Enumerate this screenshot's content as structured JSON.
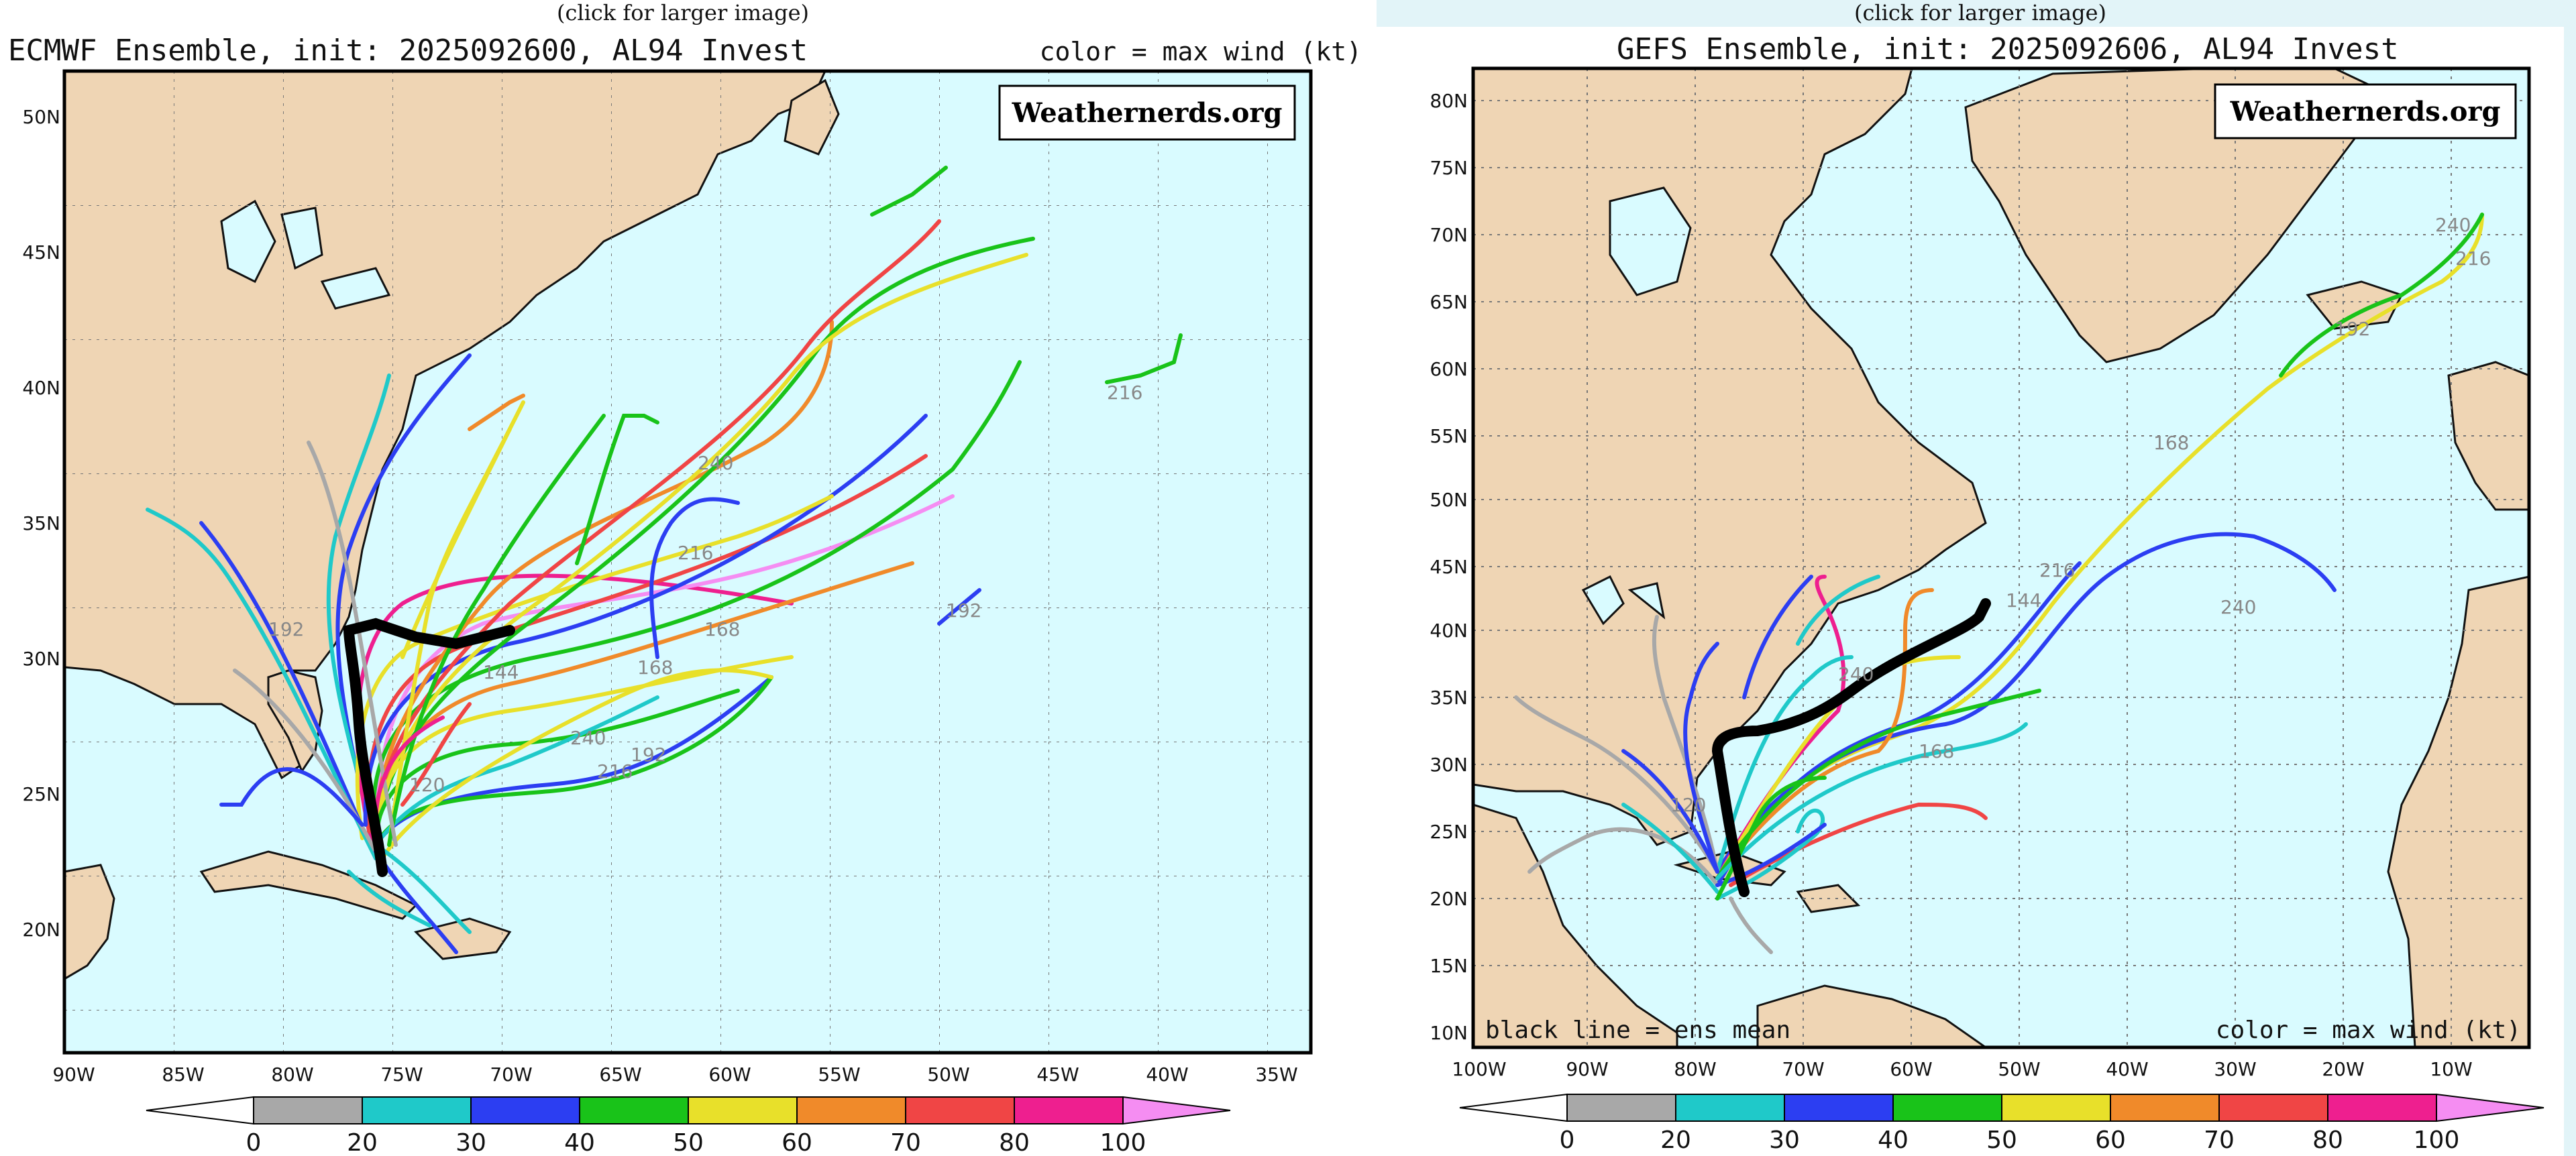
{
  "left_panel": {
    "caption": "(click for larger image)",
    "title": "ECMWF Ensemble, init: 2025092600, AL94 Invest",
    "legend_note": "color = max wind (kt)",
    "watermark": "Weathernerds.org",
    "lat_labels": [
      "50N",
      "45N",
      "40N",
      "35N",
      "30N",
      "25N",
      "20N"
    ],
    "lon_labels": [
      "90W",
      "85W",
      "80W",
      "75W",
      "70W",
      "65W",
      "60W",
      "55W",
      "50W",
      "45W",
      "40W",
      "35W"
    ],
    "hour_labels": [
      "240",
      "216",
      "192",
      "168",
      "144",
      "240",
      "216",
      "192",
      "168",
      "120",
      "192",
      "216"
    ]
  },
  "right_panel": {
    "caption": "(click for larger image)",
    "title": "GEFS Ensemble, init: 2025092606, AL94 Invest",
    "legend_note": "color = max wind (kt)",
    "mean_note": "black line = ens mean",
    "watermark": "Weathernerds.org",
    "lat_labels": [
      "80N",
      "75N",
      "70N",
      "65N",
      "60N",
      "55N",
      "50N",
      "45N",
      "40N",
      "35N",
      "30N",
      "25N",
      "20N",
      "15N",
      "10N"
    ],
    "lon_labels": [
      "100W",
      "90W",
      "80W",
      "70W",
      "60W",
      "50W",
      "40W",
      "30W",
      "20W",
      "10W"
    ],
    "hour_labels": [
      "240",
      "216",
      "192",
      "168",
      "216",
      "240",
      "144",
      "240",
      "168",
      "120"
    ]
  },
  "colorbar": {
    "ticks": [
      "0",
      "20",
      "30",
      "40",
      "50",
      "60",
      "70",
      "80",
      "100"
    ],
    "colors": [
      "#a8a8a8",
      "#1fc9c9",
      "#2c3ef2",
      "#19c319",
      "#e8e02a",
      "#f08a2a",
      "#f04545",
      "#ee1f8f",
      "#f58df2"
    ]
  },
  "colors": {
    "ocean": "#d9fbff",
    "land": "#efd5b4",
    "background_right": "#e2f4f8"
  }
}
